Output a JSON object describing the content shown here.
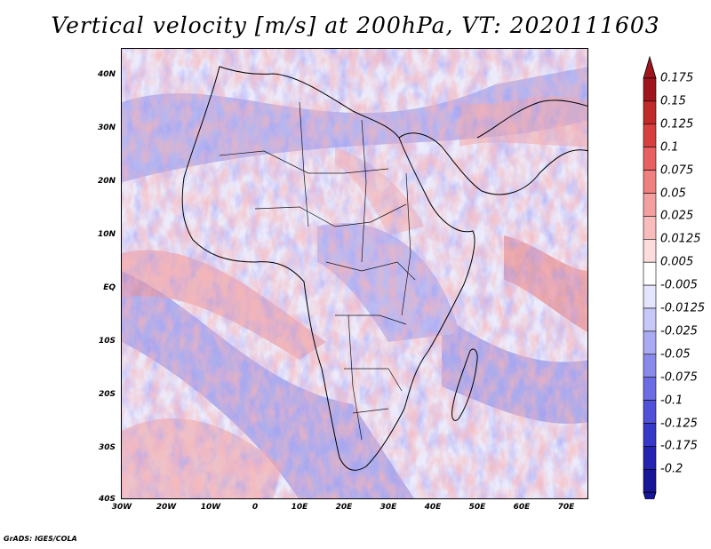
{
  "title": "Vertical velocity [m/s] at 200hPa, VT: 2020111603",
  "credit": "GrADS: IGES/COLA",
  "map": {
    "region": "Africa",
    "lat_labels": [
      "40N",
      "30N",
      "20N",
      "10N",
      "EQ",
      "10S",
      "20S",
      "30S",
      "40S"
    ],
    "lon_labels": [
      "30W",
      "20W",
      "10W",
      "0",
      "10E",
      "20E",
      "30E",
      "40E",
      "50E",
      "60E",
      "70E"
    ]
  },
  "colorbar": {
    "labels": [
      "0.175",
      "0.15",
      "0.125",
      "0.1",
      "0.075",
      "0.05",
      "0.025",
      "0.0125",
      "0.005",
      "-0.005",
      "-0.0125",
      "-0.025",
      "-0.05",
      "-0.075",
      "-0.1",
      "-0.125",
      "-0.175",
      "-0.2"
    ],
    "colors": [
      "#a0141e",
      "#c02a2a",
      "#d84040",
      "#e86060",
      "#f08080",
      "#f4a0a0",
      "#f8bcbc",
      "#fcdcdc",
      "#ffffff",
      "#e4e4fc",
      "#c8c8f8",
      "#aaaaf2",
      "#8a8aec",
      "#6c6ce4",
      "#5050d8",
      "#3838c8",
      "#2424b0",
      "#161696"
    ],
    "colors_note": "12 fill swatches above from top, arrows at ends"
  }
}
